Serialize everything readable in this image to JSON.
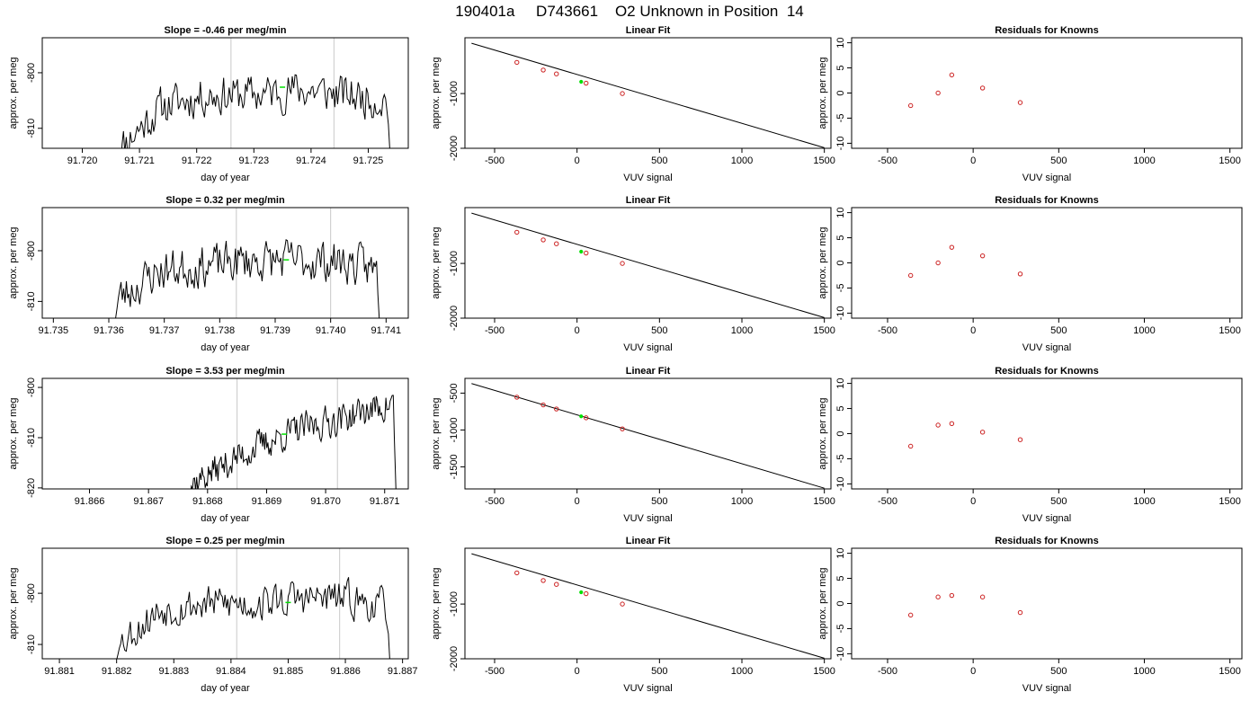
{
  "figure": {
    "title": "190401a     D743661    O2 Unknown in Position  14"
  },
  "colors": {
    "trace": "#000000",
    "marker": "#00e000",
    "points": "#cc2222",
    "vline": "#c8c8c8",
    "fitline": "#000000"
  },
  "chart_data": [
    {
      "type": "line",
      "id": "r1-trace",
      "title": "Slope =  -0.46  per meg/min",
      "xlabel": "day of year",
      "ylabel": "approx. per meg",
      "xlim": [
        91.7193,
        91.7257
      ],
      "ylim": [
        -813.6,
        -793.7
      ],
      "xticks": [
        91.72,
        91.721,
        91.722,
        91.723,
        91.724,
        91.725
      ],
      "xtick_labels": [
        "91.720",
        "91.721",
        "91.722",
        "91.723",
        "91.724",
        "91.725"
      ],
      "yticks": [
        -810,
        -800
      ],
      "ytick_labels": [
        "-810",
        "-800"
      ],
      "x_start": 91.7206,
      "x_end": 91.7254,
      "trend": [
        -814,
        -806,
        -804,
        -804,
        -803,
        -804,
        -805
      ],
      "seed": 11,
      "noise": 2.0,
      "end_drop": -818,
      "start_drop": -818,
      "vlines": [
        91.7226,
        91.7244
      ],
      "marker": {
        "x": 91.7235,
        "y": -802.6
      }
    },
    {
      "type": "scatter",
      "id": "r1-fit",
      "title": "Linear Fit",
      "xlabel": "VUV signal",
      "ylabel": "approx. per meg",
      "xlim": [
        -680,
        1540
      ],
      "ylim": [
        -2000,
        20
      ],
      "xticks": [
        -500,
        0,
        500,
        1000,
        1500
      ],
      "xtick_labels": [
        "-500",
        "0",
        "500",
        "1000",
        "1500"
      ],
      "yticks": [
        -2000,
        -1000
      ],
      "ytick_labels": [
        "-2000",
        "-1000"
      ],
      "line": {
        "x": [
          -640,
          1500
        ],
        "y": [
          -80,
          -1990
        ]
      },
      "points": {
        "x": [
          -365,
          -205,
          -125,
          55,
          275
        ],
        "y": [
          -430,
          -570,
          -640,
          -810,
          -1000
        ]
      },
      "marker": {
        "x": 25,
        "y": -785
      }
    },
    {
      "type": "scatter",
      "id": "r1-resid",
      "title": "Residuals for Knowns",
      "xlabel": "VUV signal",
      "ylabel": "approx. per meg",
      "xlim": [
        -710,
        1570
      ],
      "ylim": [
        -11,
        11
      ],
      "xticks": [
        -500,
        0,
        500,
        1000,
        1500
      ],
      "xtick_labels": [
        "-500",
        "0",
        "500",
        "1000",
        "1500"
      ],
      "yticks": [
        -10,
        -5,
        0,
        5,
        10
      ],
      "ytick_labels": [
        "-10",
        "-5",
        "0",
        "5",
        "10"
      ],
      "points": {
        "x": [
          -365,
          -205,
          -125,
          55,
          275
        ],
        "y": [
          -2.5,
          0.0,
          3.6,
          1.0,
          -1.9
        ]
      }
    },
    {
      "type": "line",
      "id": "r2-trace",
      "title": "Slope =  0.32  per meg/min",
      "xlabel": "day of year",
      "ylabel": "approx. per meg",
      "xlim": [
        91.7348,
        91.7414
      ],
      "ylim": [
        -813.3,
        -791.5
      ],
      "xticks": [
        91.735,
        91.736,
        91.737,
        91.738,
        91.739,
        91.74,
        91.741
      ],
      "xtick_labels": [
        "91.735",
        "91.736",
        "91.737",
        "91.738",
        "91.739",
        "91.740",
        "91.741"
      ],
      "yticks": [
        -810,
        -800
      ],
      "ytick_labels": [
        "-810",
        "-800"
      ],
      "x_start": 91.7361,
      "x_end": 91.7409,
      "trend": [
        -810,
        -804,
        -803,
        -802,
        -802,
        -802,
        -804
      ],
      "seed": 23,
      "noise": 2.3,
      "end_drop": -818,
      "start_drop": -815,
      "vlines": [
        91.7383,
        91.74
      ],
      "marker": {
        "x": 91.7392,
        "y": -801.8
      }
    },
    {
      "type": "scatter",
      "id": "r2-fit",
      "title": "Linear Fit",
      "xlabel": "VUV signal",
      "ylabel": "approx. per meg",
      "xlim": [
        -680,
        1540
      ],
      "ylim": [
        -2000,
        20
      ],
      "xticks": [
        -500,
        0,
        500,
        1000,
        1500
      ],
      "xtick_labels": [
        "-500",
        "0",
        "500",
        "1000",
        "1500"
      ],
      "yticks": [
        -2000,
        -1000
      ],
      "ytick_labels": [
        "-2000",
        "-1000"
      ],
      "line": {
        "x": [
          -640,
          1500
        ],
        "y": [
          -80,
          -1990
        ]
      },
      "points": {
        "x": [
          -365,
          -205,
          -125,
          55,
          275
        ],
        "y": [
          -430,
          -570,
          -640,
          -810,
          -1000
        ]
      },
      "marker": {
        "x": 25,
        "y": -785
      }
    },
    {
      "type": "scatter",
      "id": "r2-resid",
      "title": "Residuals for Knowns",
      "xlabel": "VUV signal",
      "ylabel": "approx. per meg",
      "xlim": [
        -710,
        1570
      ],
      "ylim": [
        -11,
        11
      ],
      "xticks": [
        -500,
        0,
        500,
        1000,
        1500
      ],
      "xtick_labels": [
        "-500",
        "0",
        "500",
        "1000",
        "1500"
      ],
      "yticks": [
        -10,
        -5,
        0,
        5,
        10
      ],
      "ytick_labels": [
        "-10",
        "-5",
        "0",
        "5",
        "10"
      ],
      "points": {
        "x": [
          -365,
          -205,
          -125,
          55,
          275
        ],
        "y": [
          -2.5,
          0.0,
          3.1,
          1.4,
          -2.2
        ]
      }
    },
    {
      "type": "line",
      "id": "r3-trace",
      "title": "Slope =  3.53  per meg/min",
      "xlabel": "day of year",
      "ylabel": "approx. per meg",
      "xlim": [
        91.8652,
        91.8714
      ],
      "ylim": [
        -820.2,
        -798.2
      ],
      "xticks": [
        91.866,
        91.867,
        91.868,
        91.869,
        91.87,
        91.871
      ],
      "xtick_labels": [
        "91.866",
        "91.867",
        "91.868",
        "91.869",
        "91.870",
        "91.871"
      ],
      "yticks": [
        -820,
        -810,
        -800
      ],
      "ytick_labels": [
        "-820",
        "-810",
        "-800"
      ],
      "x_start": 91.8676,
      "x_end": 91.8712,
      "trend": [
        -820,
        -816,
        -812,
        -809,
        -807,
        -805,
        -803
      ],
      "seed": 37,
      "noise": 1.8,
      "end_drop": -824,
      "start_drop": -822,
      "vlines": [
        91.8685,
        91.8702
      ],
      "marker": {
        "x": 91.8693,
        "y": -809.3
      }
    },
    {
      "type": "scatter",
      "id": "r3-fit",
      "title": "Linear Fit",
      "xlabel": "VUV signal",
      "ylabel": "approx. per meg",
      "xlim": [
        -680,
        1540
      ],
      "ylim": [
        -1800,
        -300
      ],
      "xticks": [
        -500,
        0,
        500,
        1000,
        1500
      ],
      "xtick_labels": [
        "-500",
        "0",
        "500",
        "1000",
        "1500"
      ],
      "yticks": [
        -1500,
        -1000,
        -500
      ],
      "ytick_labels": [
        "-1500",
        "-1000",
        "-500"
      ],
      "line": {
        "x": [
          -640,
          1500
        ],
        "y": [
          -370,
          -1790
        ]
      },
      "points": {
        "x": [
          -365,
          -205,
          -125,
          55,
          275
        ],
        "y": [
          -555,
          -660,
          -715,
          -835,
          -985
        ]
      },
      "marker": {
        "x": 25,
        "y": -815
      }
    },
    {
      "type": "scatter",
      "id": "r3-resid",
      "title": "Residuals for Knowns",
      "xlabel": "VUV signal",
      "ylabel": "approx. per meg",
      "xlim": [
        -710,
        1570
      ],
      "ylim": [
        -11,
        11
      ],
      "xticks": [
        -500,
        0,
        500,
        1000,
        1500
      ],
      "xtick_labels": [
        "-500",
        "0",
        "500",
        "1000",
        "1500"
      ],
      "yticks": [
        -10,
        -5,
        0,
        5,
        10
      ],
      "ytick_labels": [
        "-10",
        "-5",
        "0",
        "5",
        "10"
      ],
      "points": {
        "x": [
          -365,
          -205,
          -125,
          55,
          275
        ],
        "y": [
          -2.5,
          1.7,
          2.0,
          0.3,
          -1.2
        ]
      }
    },
    {
      "type": "line",
      "id": "r4-trace",
      "title": "Slope =  0.25  per meg/min",
      "xlabel": "day of year",
      "ylabel": "approx. per meg",
      "xlim": [
        91.8807,
        91.8871
      ],
      "ylim": [
        -812.8,
        -791.2
      ],
      "xticks": [
        91.881,
        91.882,
        91.883,
        91.884,
        91.885,
        91.886,
        91.887
      ],
      "xtick_labels": [
        "91.881",
        "91.882",
        "91.883",
        "91.884",
        "91.885",
        "91.886",
        "91.887"
      ],
      "yticks": [
        -810,
        -800
      ],
      "ytick_labels": [
        "-810",
        "-800"
      ],
      "x_start": 91.882,
      "x_end": 91.8868,
      "trend": [
        -810,
        -803,
        -802,
        -802,
        -801,
        -801,
        -803
      ],
      "seed": 53,
      "noise": 2.0,
      "end_drop": -818,
      "start_drop": -813,
      "vlines": [
        91.8841,
        91.8859
      ],
      "marker": {
        "x": 91.885,
        "y": -801.8
      }
    },
    {
      "type": "scatter",
      "id": "r4-fit",
      "title": "Linear Fit",
      "xlabel": "VUV signal",
      "ylabel": "approx. per meg",
      "xlim": [
        -680,
        1540
      ],
      "ylim": [
        -2000,
        20
      ],
      "xticks": [
        -500,
        0,
        500,
        1000,
        1500
      ],
      "xtick_labels": [
        "-500",
        "0",
        "500",
        "1000",
        "1500"
      ],
      "yticks": [
        -2000,
        -1000
      ],
      "ytick_labels": [
        "-2000",
        "-1000"
      ],
      "line": {
        "x": [
          -640,
          1500
        ],
        "y": [
          -80,
          -1990
        ]
      },
      "points": {
        "x": [
          -365,
          -205,
          -125,
          55,
          275
        ],
        "y": [
          -430,
          -570,
          -640,
          -810,
          -1000
        ]
      },
      "marker": {
        "x": 25,
        "y": -785
      }
    },
    {
      "type": "scatter",
      "id": "r4-resid",
      "title": "Residuals for Knowns",
      "xlabel": "VUV signal",
      "ylabel": "approx. per meg",
      "xlim": [
        -710,
        1570
      ],
      "ylim": [
        -11,
        11
      ],
      "xticks": [
        -500,
        0,
        500,
        1000,
        1500
      ],
      "xtick_labels": [
        "-500",
        "0",
        "500",
        "1000",
        "1500"
      ],
      "yticks": [
        -10,
        -5,
        0,
        5,
        10
      ],
      "ytick_labels": [
        "-10",
        "-5",
        "0",
        "5",
        "10"
      ],
      "points": {
        "x": [
          -365,
          -205,
          -125,
          55,
          275
        ],
        "y": [
          -2.3,
          1.3,
          1.6,
          1.3,
          -1.8
        ]
      }
    }
  ]
}
